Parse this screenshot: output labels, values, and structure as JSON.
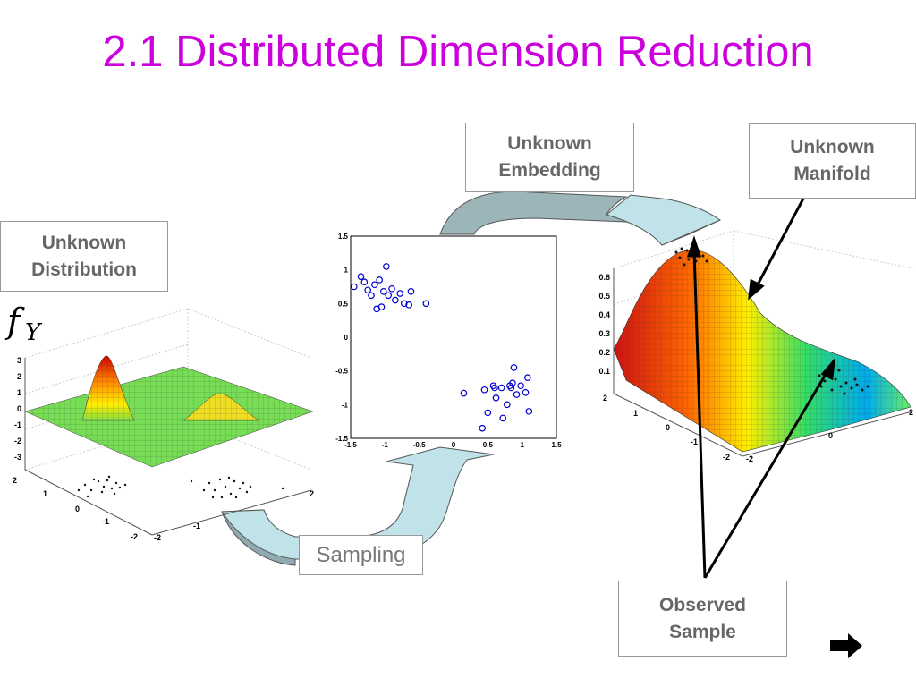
{
  "title": "2.1 Distributed Dimension Reduction",
  "labels": {
    "distribution": "Unknown\nDistribution",
    "embedding": "Unknown\nEmbedding",
    "manifold": "Unknown\nManifold",
    "observed": "Observed\nSample",
    "sampling": "Sampling",
    "fy": "f",
    "fy_sub": "Y"
  },
  "left_plot": {
    "z_ticks": [
      "3",
      "2",
      "1",
      "0",
      "-1",
      "-2",
      "-3"
    ],
    "y_ticks": [
      "2",
      "1",
      "0",
      "-1",
      "-2"
    ],
    "x_ticks": [
      "-2",
      "-1",
      "2"
    ]
  },
  "scatter": {
    "x_ticks": [
      "-1.5",
      "-1",
      "-0.5",
      "0",
      "0.5",
      "1",
      "1.5"
    ],
    "y_ticks": [
      "1.5",
      "1",
      "0.5",
      "0",
      "-0.5",
      "-1",
      "-1.5"
    ],
    "cluster_a": [
      [
        -1.35,
        0.9
      ],
      [
        -1.3,
        0.82
      ],
      [
        -1.25,
        0.7
      ],
      [
        -1.2,
        0.62
      ],
      [
        -1.15,
        0.78
      ],
      [
        -1.08,
        0.85
      ],
      [
        -1.02,
        0.68
      ],
      [
        -0.98,
        1.05
      ],
      [
        -0.95,
        0.62
      ],
      [
        -0.9,
        0.72
      ],
      [
        -0.85,
        0.55
      ],
      [
        -0.78,
        0.65
      ],
      [
        -0.72,
        0.5
      ],
      [
        -0.65,
        0.48
      ],
      [
        -0.62,
        0.68
      ],
      [
        -0.4,
        0.5
      ],
      [
        -1.05,
        0.45
      ],
      [
        -1.12,
        0.42
      ],
      [
        -1.45,
        0.75
      ]
    ],
    "cluster_b": [
      [
        0.15,
        -0.83
      ],
      [
        0.42,
        -1.35
      ],
      [
        0.45,
        -0.78
      ],
      [
        0.5,
        -1.12
      ],
      [
        0.6,
        -0.75
      ],
      [
        0.62,
        -0.9
      ],
      [
        0.7,
        -0.75
      ],
      [
        0.72,
        -1.2
      ],
      [
        0.78,
        -1.0
      ],
      [
        0.82,
        -0.72
      ],
      [
        0.86,
        -0.68
      ],
      [
        0.88,
        -0.45
      ],
      [
        0.92,
        -0.85
      ],
      [
        0.98,
        -0.72
      ],
      [
        1.05,
        -0.82
      ],
      [
        1.08,
        -0.6
      ],
      [
        1.1,
        -1.1
      ],
      [
        0.58,
        -0.72
      ],
      [
        0.84,
        -0.75
      ]
    ]
  },
  "right_plot": {
    "z_ticks": [
      "0.6",
      "0.5",
      "0.4",
      "0.3",
      "0.2",
      "0.1"
    ],
    "y_ticks": [
      "2",
      "1",
      "0",
      "-1",
      "-2"
    ],
    "x_ticks": [
      "-2",
      "0",
      "2"
    ]
  },
  "colors": {
    "title": "#cc00dd",
    "arrow_fill_dark": "#8fabb0",
    "arrow_fill_light": "#bfe3e8",
    "scatter_marker": "#0000cc"
  }
}
